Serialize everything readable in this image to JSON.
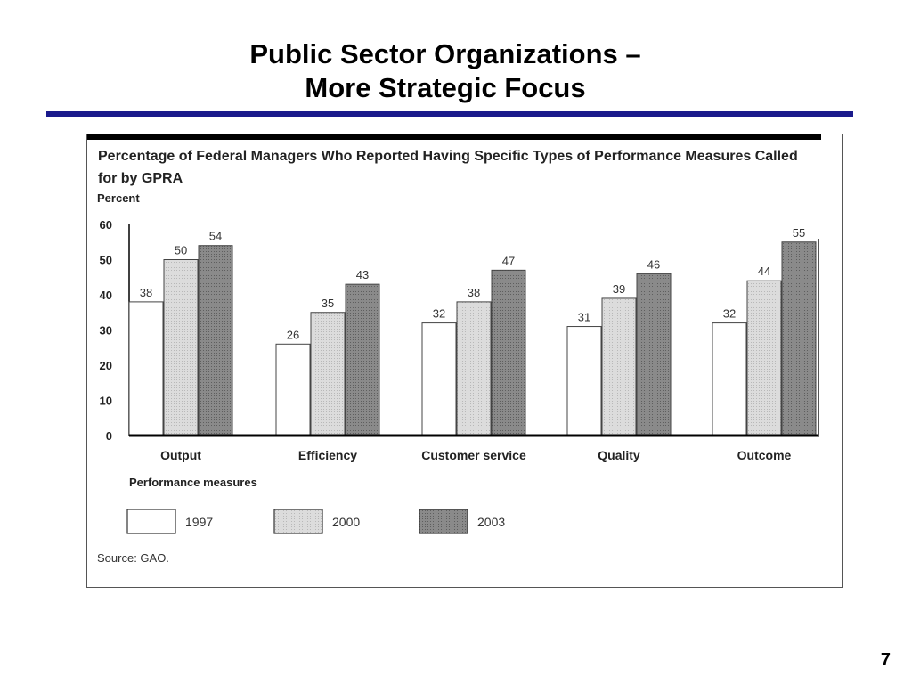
{
  "slide": {
    "title_line1": "Public Sector Organizations –",
    "title_line2": "More Strategic Focus",
    "page_number": "7"
  },
  "colors": {
    "title_rule": "#1a1a8c",
    "series_1997": "#ffffff",
    "series_2000": "#d9d9d9",
    "series_2003": "#858585"
  },
  "chart_data": {
    "type": "bar",
    "title": "Percentage of Federal Managers Who Reported Having Specific Types of Performance Measures Called for by GPRA",
    "ylabel": "Percent",
    "xlabel": "Performance measures",
    "ylim": [
      0,
      60
    ],
    "yticks": [
      0,
      10,
      20,
      30,
      40,
      50,
      60
    ],
    "categories": [
      "Output",
      "Efficiency",
      "Customer service",
      "Quality",
      "Outcome"
    ],
    "series": [
      {
        "name": "1997",
        "values": [
          38,
          26,
          32,
          31,
          32
        ]
      },
      {
        "name": "2000",
        "values": [
          50,
          35,
          38,
          39,
          44
        ]
      },
      {
        "name": "2003",
        "values": [
          54,
          43,
          47,
          46,
          55
        ]
      }
    ],
    "legend": "bottom",
    "grid": false,
    "source": "Source: GAO."
  }
}
